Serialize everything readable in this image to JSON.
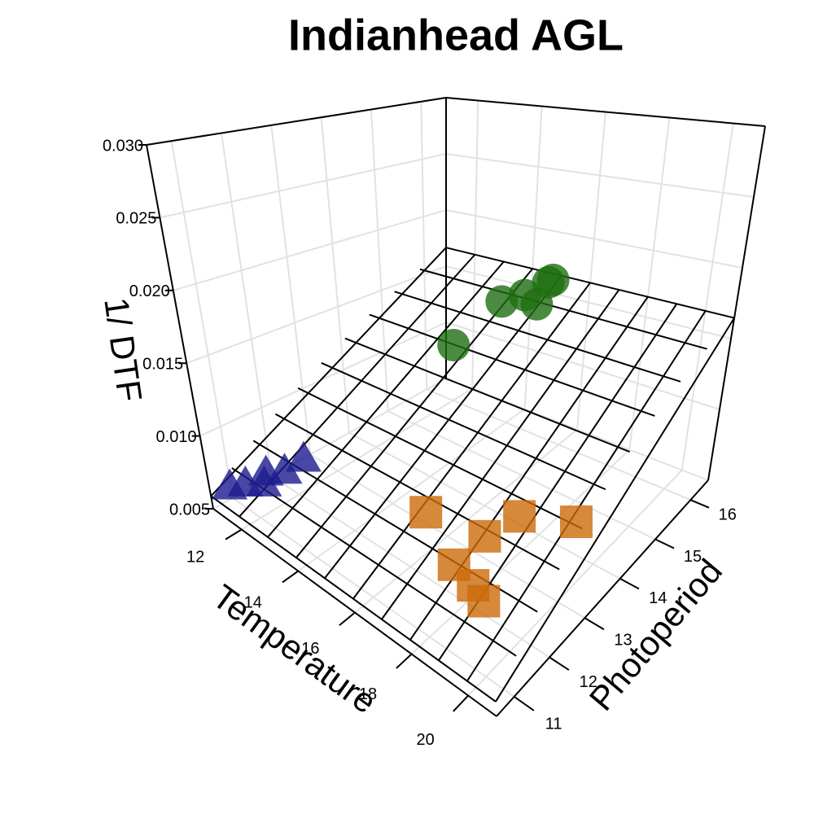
{
  "chart_data": {
    "type": "scatter3d",
    "title": "Indianhead AGL",
    "x_label": "Temperature",
    "y_label": "Photoperiod",
    "z_label": "1/ DTF",
    "xlim": [
      11,
      21
    ],
    "ylim": [
      10.5,
      16.5
    ],
    "zlim": [
      0.005,
      0.03
    ],
    "xticks": [
      12,
      14,
      16,
      18,
      20
    ],
    "yticks": [
      11,
      12,
      13,
      14,
      15,
      16
    ],
    "zticks": [
      {
        "value": 0.005,
        "label": "0.005"
      },
      {
        "value": 0.01,
        "label": "0.010"
      },
      {
        "value": 0.015,
        "label": "0.015"
      },
      {
        "value": 0.02,
        "label": "0.020"
      },
      {
        "value": 0.025,
        "label": "0.025"
      },
      {
        "value": 0.03,
        "label": "0.030"
      }
    ],
    "grid": true,
    "regression_plane": true,
    "series": [
      {
        "marker": "triangle",
        "color": "#1c1c8f",
        "x": [
          11.3,
          11.6,
          12.0,
          12.2,
          12.5,
          11.8
        ],
        "y": [
          10.8,
          11.0,
          11.2,
          11.6,
          11.9,
          11.4
        ],
        "values": [
          0.0065,
          0.0068,
          0.007,
          0.0075,
          0.0082,
          0.0072
        ]
      },
      {
        "marker": "square",
        "color": "#cc6a0a",
        "x": [
          17.0,
          18.2,
          19.0,
          19.2,
          19.5,
          20.0,
          18.5
        ],
        "y": [
          11.8,
          11.6,
          11.5,
          12.6,
          11.4,
          13.5,
          12.2
        ],
        "values": [
          0.0095,
          0.008,
          0.0078,
          0.0098,
          0.0076,
          0.0085,
          0.0088
        ]
      },
      {
        "marker": "circle",
        "color": "#1e6e12",
        "x": [
          15.5,
          14.0,
          14.5,
          15.0,
          15.3,
          13.5
        ],
        "y": [
          15.6,
          15.8,
          16.0,
          16.2,
          16.1,
          15.0
        ],
        "values": [
          0.016,
          0.015,
          0.0155,
          0.0165,
          0.017,
          0.0125
        ]
      }
    ]
  }
}
